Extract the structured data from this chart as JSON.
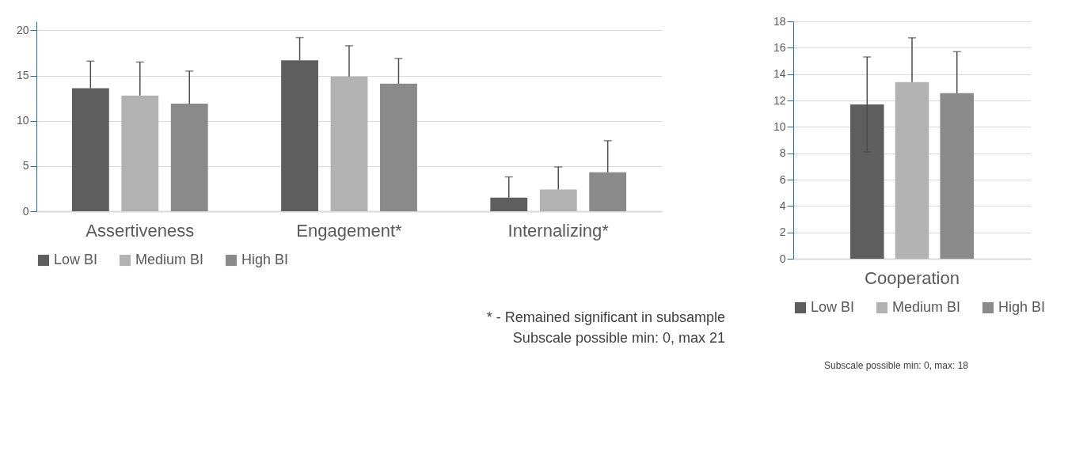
{
  "chart_data": [
    {
      "type": "bar",
      "categories": [
        "Assertiveness",
        "Engagement*",
        "Internalizing*"
      ],
      "series": [
        {
          "name": "Low BI",
          "color": "#5e5e5e",
          "values": [
            13.6,
            16.7,
            1.5
          ],
          "errors": [
            [
              13.6,
              16.6
            ],
            [
              16.7,
              19.2
            ],
            [
              1.5,
              3.8
            ]
          ]
        },
        {
          "name": "Medium BI",
          "color": "#b2b2b2",
          "values": [
            12.8,
            14.9,
            2.4
          ],
          "errors": [
            [
              12.8,
              16.5
            ],
            [
              14.9,
              18.3
            ],
            [
              2.4,
              4.9
            ]
          ]
        },
        {
          "name": "High BI",
          "color": "#8a8a8a",
          "values": [
            11.9,
            14.1,
            4.3
          ],
          "errors": [
            [
              11.9,
              15.5
            ],
            [
              14.1,
              16.9
            ],
            [
              4.3,
              7.8
            ]
          ]
        }
      ],
      "ylim": [
        0,
        21
      ],
      "yticks": [
        0,
        5,
        10,
        15,
        20
      ],
      "grid": "y",
      "legend": "bottom",
      "annotations": [
        "* - Remained significant in subsample",
        "Subscale possible min: 0, max 21"
      ]
    },
    {
      "type": "bar",
      "categories": [
        "Cooperation"
      ],
      "series": [
        {
          "name": "Low BI",
          "color": "#5e5e5e",
          "values": [
            11.7
          ],
          "errors": [
            [
              8.1,
              15.3
            ]
          ]
        },
        {
          "name": "Medium BI",
          "color": "#b2b2b2",
          "values": [
            13.4
          ],
          "errors": [
            [
              13.4,
              16.75
            ]
          ]
        },
        {
          "name": "High BI",
          "color": "#8a8a8a",
          "values": [
            12.55
          ],
          "errors": [
            [
              12.55,
              15.7
            ]
          ]
        }
      ],
      "ylim": [
        0,
        18
      ],
      "yticks": [
        0,
        2,
        4,
        6,
        8,
        10,
        12,
        14,
        16,
        18
      ],
      "grid": "y",
      "legend": "bottom",
      "annotations": [
        "Subscale possible min: 0, max: 18"
      ]
    }
  ]
}
